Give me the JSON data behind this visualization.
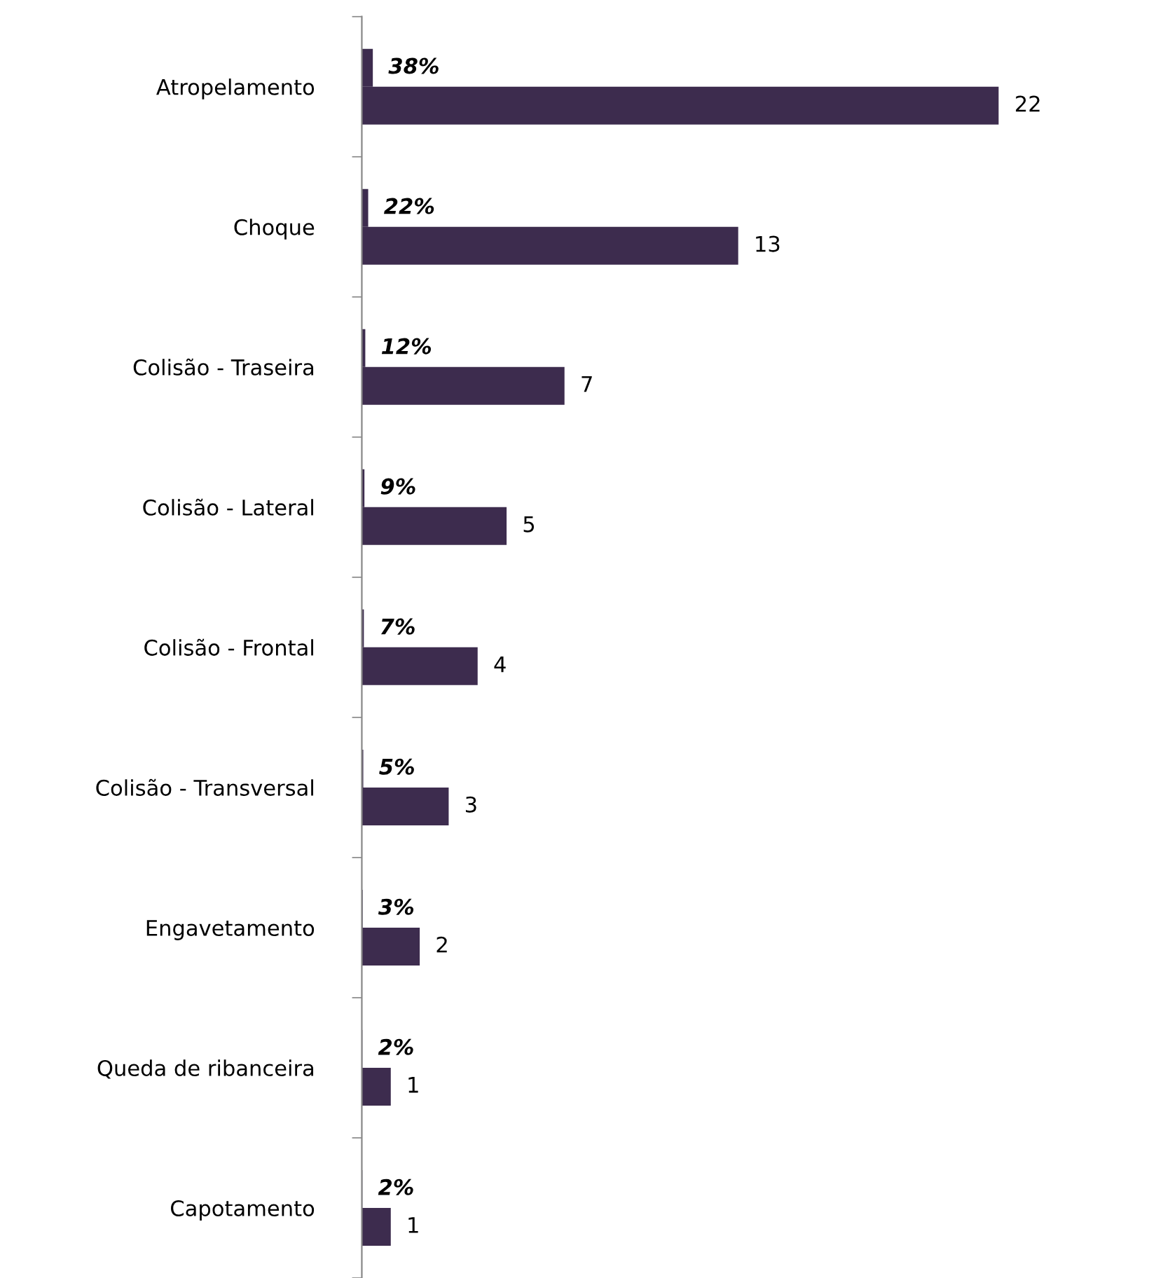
{
  "chart_data": {
    "type": "bar",
    "orientation": "horizontal",
    "categories": [
      "Atropelamento",
      "Choque",
      "Colisão - Traseira",
      "Colisão - Lateral",
      "Colisão - Frontal",
      "Colisão - Transversal",
      "Engavetamento",
      "Queda de ribanceira",
      "Capotamento"
    ],
    "series": [
      {
        "color": "#3d2c4e",
        "values": [
          0.38,
          0.22,
          0.12,
          0.09,
          0.07,
          0.05,
          0.03,
          0.02,
          0.02
        ],
        "value_labels": [
          "38%",
          "22%",
          "12%",
          "9%",
          "7%",
          "5%",
          "3%",
          "2%",
          "2%"
        ]
      },
      {
        "color": "#3d2c4e",
        "values": [
          22,
          13,
          7,
          5,
          4,
          3,
          2,
          1,
          1
        ]
      }
    ],
    "data_labels": true,
    "grid": false
  }
}
